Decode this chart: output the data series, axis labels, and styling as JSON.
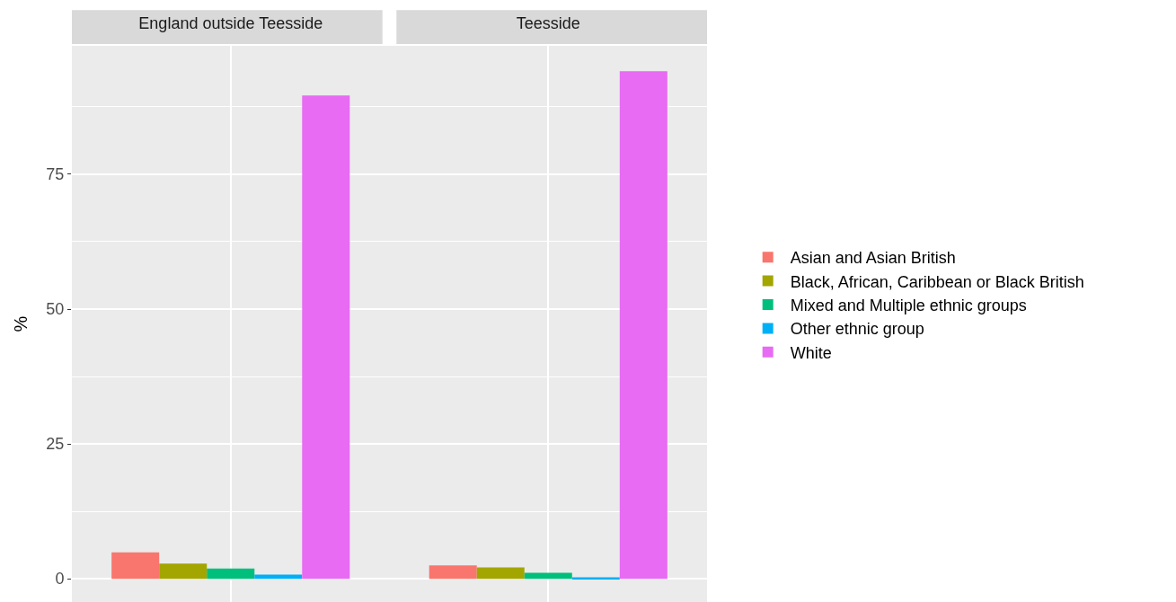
{
  "chart_data": {
    "type": "bar",
    "ylabel": "%",
    "categories": [
      "England outside Teesside",
      "Teesside"
    ],
    "series": [
      {
        "name": "Asian and Asian British",
        "color": "#f8766d",
        "values": [
          4.9,
          2.5
        ]
      },
      {
        "name": "Black, African, Caribbean or Black British",
        "color": "#a3a500",
        "values": [
          2.8,
          2.1
        ]
      },
      {
        "name": "Mixed and Multiple ethnic groups",
        "color": "#00bf7d",
        "values": [
          1.9,
          1.1
        ]
      },
      {
        "name": "Other ethnic group",
        "color": "#00b0f6",
        "values": [
          0.8,
          0.3
        ]
      },
      {
        "name": "White",
        "color": "#e76bf3",
        "values": [
          89.6,
          94.1
        ]
      }
    ],
    "ylim": [
      -4.3,
      98.8
    ],
    "yticks": [
      0,
      {
        "value": 12.5,
        "label": null
      },
      25,
      {
        "value": 37.5,
        "label": null
      },
      50,
      {
        "value": 62.5,
        "label": null
      },
      75,
      {
        "value": 87.5,
        "label": null
      }
    ],
    "grid": true,
    "legend": "right"
  }
}
